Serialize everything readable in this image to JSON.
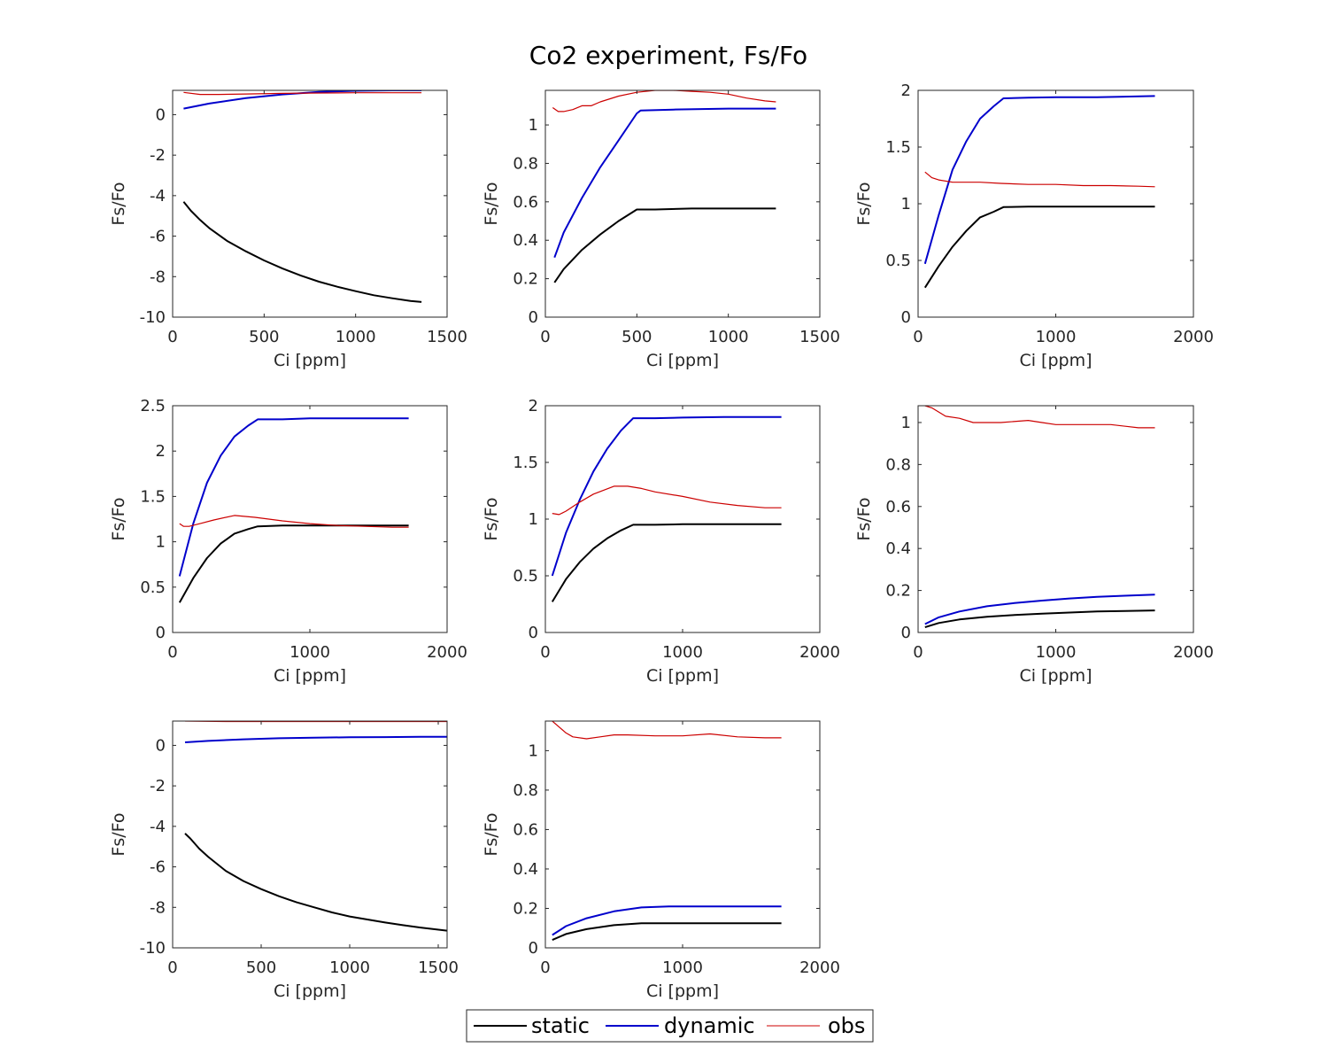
{
  "figure": {
    "title": "Co2 experiment, Fs/Fo",
    "legend": {
      "placement": "bottom-center",
      "entries": [
        {
          "name": "static",
          "color": "#000000"
        },
        {
          "name": "dynamic",
          "color": "#0000cc"
        },
        {
          "name": "obs",
          "color": "#cc0000"
        }
      ]
    }
  },
  "chart_data": [
    {
      "type": "line",
      "xlabel": "Ci [ppm]",
      "ylabel": "Fs/Fo",
      "xlim": [
        0,
        1500
      ],
      "ylim": [
        -10,
        1.2
      ],
      "xticks": [
        0,
        500,
        1000,
        1500
      ],
      "yticks": [
        -10,
        -8,
        -6,
        -4,
        -2,
        0
      ],
      "series": [
        {
          "name": "static",
          "x": [
            60,
            100,
            150,
            200,
            300,
            400,
            500,
            600,
            700,
            800,
            900,
            1000,
            1100,
            1200,
            1300,
            1360
          ],
          "y": [
            -4.3,
            -4.75,
            -5.2,
            -5.6,
            -6.25,
            -6.75,
            -7.2,
            -7.6,
            -7.95,
            -8.25,
            -8.5,
            -8.72,
            -8.92,
            -9.07,
            -9.2,
            -9.25
          ]
        },
        {
          "name": "dynamic",
          "x": [
            60,
            200,
            400,
            600,
            800,
            1000,
            1200,
            1360
          ],
          "y": [
            0.3,
            0.55,
            0.82,
            1.0,
            1.12,
            1.18,
            1.2,
            1.2
          ]
        },
        {
          "name": "obs",
          "x": [
            60,
            150,
            250,
            400,
            600,
            800,
            1000,
            1200,
            1360
          ],
          "y": [
            1.1,
            1.0,
            1.0,
            1.02,
            1.05,
            1.07,
            1.08,
            1.08,
            1.08
          ]
        }
      ]
    },
    {
      "type": "line",
      "xlabel": "Ci [ppm]",
      "ylabel": "Fs/Fo",
      "xlim": [
        0,
        1500
      ],
      "ylim": [
        0,
        1.18
      ],
      "xticks": [
        0,
        500,
        1000,
        1500
      ],
      "yticks": [
        0,
        0.2,
        0.4,
        0.6,
        0.8,
        1
      ],
      "series": [
        {
          "name": "static",
          "x": [
            50,
            100,
            200,
            300,
            400,
            500,
            600,
            800,
            1000,
            1260
          ],
          "y": [
            0.18,
            0.25,
            0.35,
            0.43,
            0.5,
            0.56,
            0.56,
            0.565,
            0.565,
            0.565
          ]
        },
        {
          "name": "dynamic",
          "x": [
            50,
            100,
            200,
            300,
            400,
            500,
            520,
            700,
            1000,
            1260
          ],
          "y": [
            0.31,
            0.44,
            0.62,
            0.78,
            0.92,
            1.06,
            1.075,
            1.08,
            1.085,
            1.085
          ]
        },
        {
          "name": "obs",
          "x": [
            40,
            70,
            100,
            150,
            200,
            250,
            300,
            400,
            500,
            600,
            650,
            700,
            800,
            900,
            1000,
            1100,
            1200,
            1260
          ],
          "y": [
            1.09,
            1.07,
            1.07,
            1.08,
            1.1,
            1.1,
            1.12,
            1.15,
            1.17,
            1.18,
            1.18,
            1.18,
            1.175,
            1.17,
            1.16,
            1.14,
            1.125,
            1.12
          ]
        }
      ]
    },
    {
      "type": "line",
      "xlabel": "Ci [ppm]",
      "ylabel": "Fs/Fo",
      "xlim": [
        0,
        2000
      ],
      "ylim": [
        0,
        2.0
      ],
      "xticks": [
        0,
        1000,
        2000
      ],
      "yticks": [
        0,
        0.5,
        1,
        1.5,
        2
      ],
      "series": [
        {
          "name": "static",
          "x": [
            50,
            150,
            250,
            350,
            450,
            550,
            620,
            800,
            1000,
            1300,
            1720
          ],
          "y": [
            0.26,
            0.45,
            0.62,
            0.76,
            0.88,
            0.93,
            0.97,
            0.975,
            0.975,
            0.975,
            0.975
          ]
        },
        {
          "name": "dynamic",
          "x": [
            50,
            150,
            250,
            350,
            450,
            550,
            620,
            800,
            1000,
            1300,
            1720
          ],
          "y": [
            0.47,
            0.9,
            1.3,
            1.55,
            1.75,
            1.86,
            1.93,
            1.935,
            1.94,
            1.94,
            1.95
          ]
        },
        {
          "name": "obs",
          "x": [
            50,
            100,
            150,
            250,
            350,
            450,
            600,
            800,
            1000,
            1200,
            1400,
            1600,
            1720
          ],
          "y": [
            1.28,
            1.23,
            1.21,
            1.19,
            1.19,
            1.19,
            1.18,
            1.17,
            1.17,
            1.16,
            1.16,
            1.155,
            1.15
          ]
        }
      ]
    },
    {
      "type": "line",
      "xlabel": "Ci [ppm]",
      "ylabel": "Fs/Fo",
      "xlim": [
        0,
        2000
      ],
      "ylim": [
        0,
        2.5
      ],
      "xticks": [
        0,
        1000,
        2000
      ],
      "yticks": [
        0,
        0.5,
        1,
        1.5,
        2,
        2.5
      ],
      "series": [
        {
          "name": "static",
          "x": [
            50,
            150,
            250,
            350,
            450,
            550,
            620,
            800,
            1000,
            1300,
            1720
          ],
          "y": [
            0.33,
            0.6,
            0.82,
            0.98,
            1.09,
            1.14,
            1.17,
            1.18,
            1.18,
            1.18,
            1.18
          ]
        },
        {
          "name": "dynamic",
          "x": [
            50,
            150,
            250,
            350,
            450,
            550,
            620,
            800,
            1000,
            1300,
            1720
          ],
          "y": [
            0.62,
            1.2,
            1.65,
            1.95,
            2.16,
            2.28,
            2.35,
            2.35,
            2.36,
            2.36,
            2.36
          ]
        },
        {
          "name": "obs",
          "x": [
            50,
            80,
            120,
            200,
            300,
            450,
            600,
            800,
            1000,
            1200,
            1400,
            1600,
            1720
          ],
          "y": [
            1.2,
            1.17,
            1.17,
            1.2,
            1.24,
            1.29,
            1.27,
            1.23,
            1.2,
            1.18,
            1.17,
            1.16,
            1.16
          ]
        }
      ]
    },
    {
      "type": "line",
      "xlabel": "Ci [ppm]",
      "ylabel": "Fs/Fo",
      "xlim": [
        0,
        2000
      ],
      "ylim": [
        0,
        2.0
      ],
      "xticks": [
        0,
        1000,
        2000
      ],
      "yticks": [
        0,
        0.5,
        1,
        1.5,
        2
      ],
      "series": [
        {
          "name": "static",
          "x": [
            50,
            150,
            250,
            350,
            450,
            550,
            640,
            800,
            1000,
            1300,
            1720
          ],
          "y": [
            0.27,
            0.47,
            0.62,
            0.74,
            0.83,
            0.9,
            0.95,
            0.95,
            0.955,
            0.955,
            0.955
          ]
        },
        {
          "name": "dynamic",
          "x": [
            50,
            150,
            250,
            350,
            450,
            550,
            640,
            800,
            1000,
            1300,
            1720
          ],
          "y": [
            0.5,
            0.88,
            1.17,
            1.42,
            1.62,
            1.78,
            1.89,
            1.89,
            1.895,
            1.9,
            1.9
          ]
        },
        {
          "name": "obs",
          "x": [
            50,
            100,
            150,
            250,
            350,
            500,
            600,
            700,
            800,
            1000,
            1200,
            1400,
            1600,
            1720
          ],
          "y": [
            1.05,
            1.04,
            1.07,
            1.15,
            1.22,
            1.29,
            1.29,
            1.27,
            1.24,
            1.2,
            1.15,
            1.12,
            1.1,
            1.1
          ]
        }
      ]
    },
    {
      "type": "line",
      "xlabel": "Ci [ppm]",
      "ylabel": "Fs/Fo",
      "xlim": [
        0,
        2000
      ],
      "ylim": [
        0,
        1.08
      ],
      "xticks": [
        0,
        1000,
        2000
      ],
      "yticks": [
        0,
        0.2,
        0.4,
        0.6,
        0.8,
        1
      ],
      "series": [
        {
          "name": "static",
          "x": [
            50,
            150,
            300,
            500,
            700,
            900,
            1100,
            1300,
            1500,
            1720
          ],
          "y": [
            0.025,
            0.045,
            0.062,
            0.075,
            0.083,
            0.09,
            0.095,
            0.1,
            0.102,
            0.105
          ]
        },
        {
          "name": "dynamic",
          "x": [
            50,
            150,
            300,
            500,
            700,
            900,
            1100,
            1300,
            1500,
            1720
          ],
          "y": [
            0.04,
            0.072,
            0.1,
            0.125,
            0.14,
            0.152,
            0.162,
            0.17,
            0.175,
            0.18
          ]
        },
        {
          "name": "obs",
          "x": [
            50,
            100,
            150,
            200,
            300,
            400,
            600,
            800,
            900,
            1000,
            1200,
            1400,
            1600,
            1720
          ],
          "y": [
            1.08,
            1.07,
            1.05,
            1.03,
            1.02,
            1.0,
            1.0,
            1.01,
            1.0,
            0.99,
            0.99,
            0.99,
            0.975,
            0.975
          ]
        }
      ]
    },
    {
      "type": "line",
      "xlabel": "Ci [ppm]",
      "ylabel": "Fs/Fo",
      "xlim": [
        0,
        1550
      ],
      "ylim": [
        -10,
        1.2
      ],
      "xticks": [
        0,
        500,
        1000,
        1500
      ],
      "yticks": [
        -10,
        -8,
        -6,
        -4,
        -2,
        0
      ],
      "series": [
        {
          "name": "static",
          "x": [
            70,
            100,
            150,
            200,
            300,
            400,
            500,
            600,
            700,
            800,
            900,
            1000,
            1100,
            1200,
            1300,
            1400,
            1550
          ],
          "y": [
            -4.35,
            -4.6,
            -5.1,
            -5.5,
            -6.2,
            -6.7,
            -7.1,
            -7.45,
            -7.75,
            -8.0,
            -8.25,
            -8.45,
            -8.6,
            -8.75,
            -8.88,
            -9.0,
            -9.15
          ]
        },
        {
          "name": "dynamic",
          "x": [
            70,
            200,
            400,
            600,
            800,
            1000,
            1200,
            1400,
            1550
          ],
          "y": [
            0.15,
            0.22,
            0.3,
            0.35,
            0.38,
            0.4,
            0.41,
            0.42,
            0.42
          ]
        },
        {
          "name": "obs",
          "x": [
            70,
            300,
            600,
            900,
            1200,
            1550
          ],
          "y": [
            1.2,
            1.18,
            1.18,
            1.18,
            1.18,
            1.18
          ]
        }
      ]
    },
    {
      "type": "line",
      "xlabel": "Ci [ppm]",
      "ylabel": "Fs/Fo",
      "xlim": [
        0,
        2000
      ],
      "ylim": [
        0,
        1.15
      ],
      "xticks": [
        0,
        1000,
        2000
      ],
      "yticks": [
        0,
        0.2,
        0.4,
        0.6,
        0.8,
        1
      ],
      "series": [
        {
          "name": "static",
          "x": [
            50,
            150,
            300,
            500,
            700,
            900,
            1100,
            1300,
            1500,
            1720
          ],
          "y": [
            0.04,
            0.07,
            0.095,
            0.115,
            0.125,
            0.125,
            0.125,
            0.125,
            0.125,
            0.125
          ]
        },
        {
          "name": "dynamic",
          "x": [
            50,
            150,
            300,
            500,
            700,
            900,
            1100,
            1300,
            1500,
            1720
          ],
          "y": [
            0.065,
            0.11,
            0.15,
            0.185,
            0.205,
            0.21,
            0.21,
            0.21,
            0.21,
            0.21
          ]
        },
        {
          "name": "obs",
          "x": [
            50,
            100,
            150,
            200,
            300,
            400,
            500,
            600,
            800,
            1000,
            1200,
            1400,
            1600,
            1720
          ],
          "y": [
            1.15,
            1.12,
            1.09,
            1.07,
            1.06,
            1.07,
            1.08,
            1.08,
            1.075,
            1.075,
            1.085,
            1.07,
            1.065,
            1.065
          ]
        }
      ]
    }
  ]
}
